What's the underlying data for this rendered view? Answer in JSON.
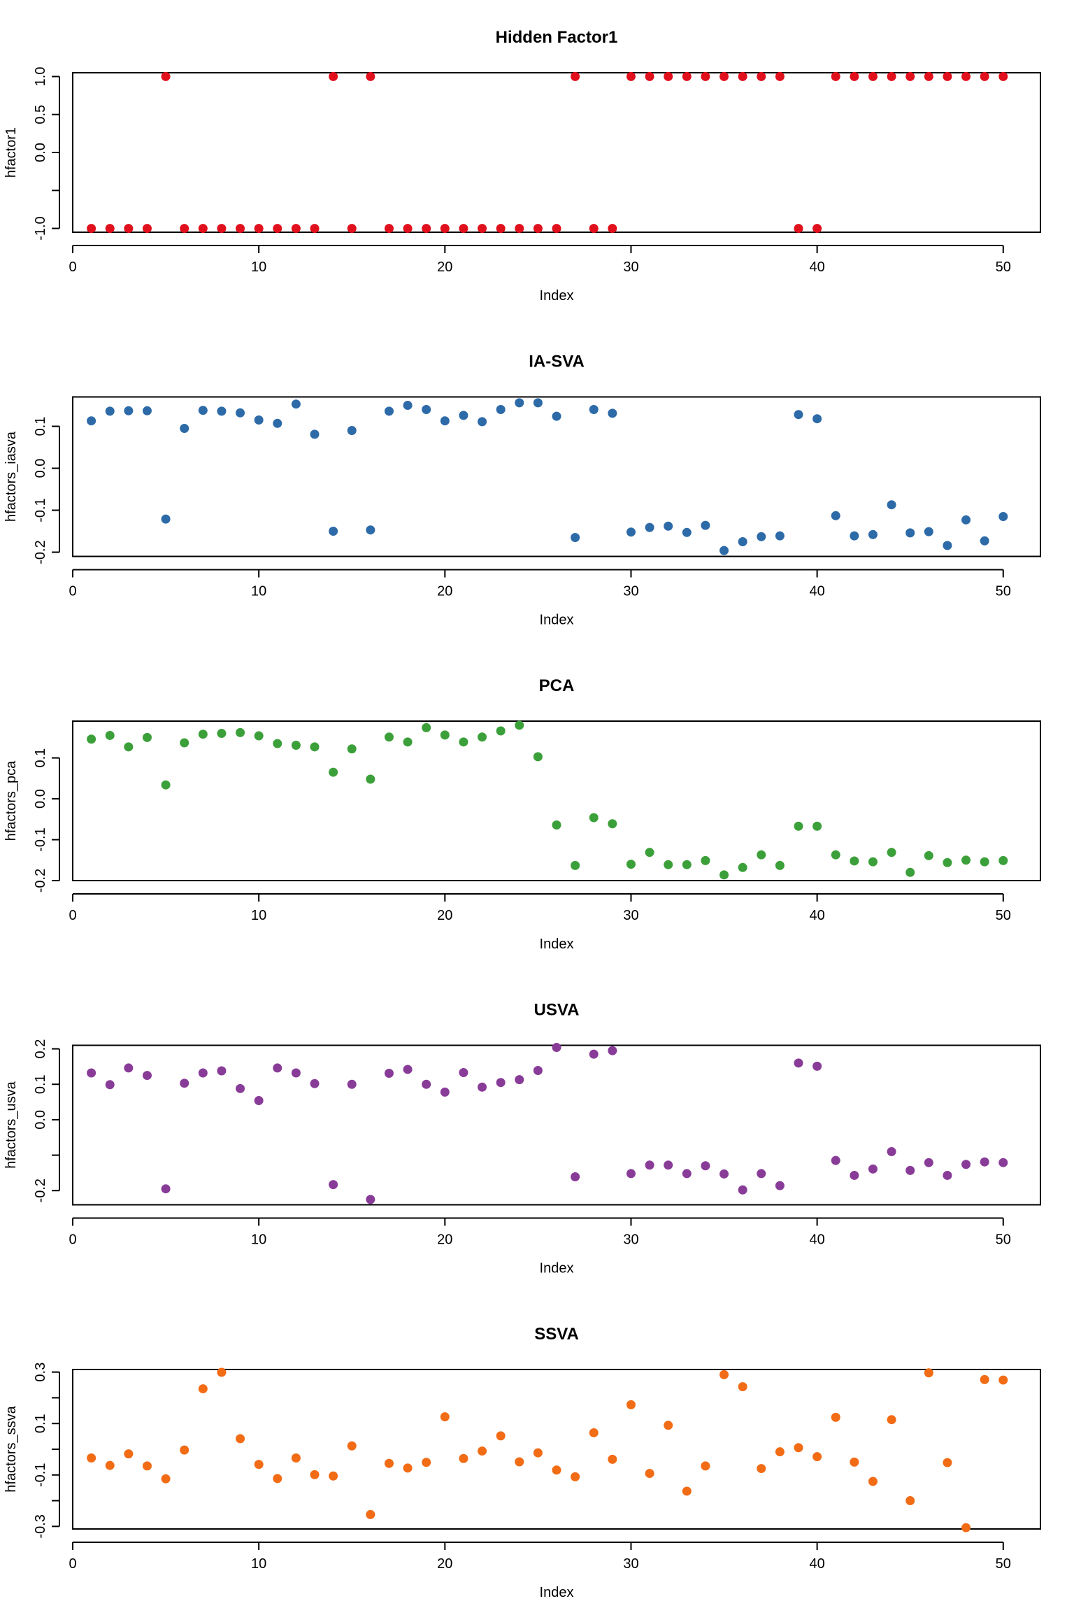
{
  "chart_data": [
    {
      "type": "scatter",
      "title": "Hidden Factor1",
      "xlabel": "Index",
      "ylabel": "hfactor1",
      "color": "#e0101c",
      "xlim": [
        0,
        52
      ],
      "ylim": [
        -1.05,
        1.05
      ],
      "xticks": [
        0,
        10,
        20,
        30,
        40,
        50
      ],
      "yticks": [
        -1.0,
        -0.5,
        0.0,
        0.5,
        1.0
      ],
      "ytick_labels": [
        "-1.0",
        "",
        "0.0",
        "0.5",
        "1.0"
      ],
      "x": [
        1,
        2,
        3,
        4,
        5,
        6,
        7,
        8,
        9,
        10,
        11,
        12,
        13,
        14,
        15,
        16,
        17,
        18,
        19,
        20,
        21,
        22,
        23,
        24,
        25,
        26,
        27,
        28,
        29,
        30,
        31,
        32,
        33,
        34,
        35,
        36,
        37,
        38,
        39,
        40,
        41,
        42,
        43,
        44,
        45,
        46,
        47,
        48,
        49,
        50
      ],
      "y": [
        -1,
        -1,
        -1,
        -1,
        1,
        -1,
        -1,
        -1,
        -1,
        -1,
        -1,
        -1,
        -1,
        1,
        -1,
        1,
        -1,
        -1,
        -1,
        -1,
        -1,
        -1,
        -1,
        -1,
        -1,
        -1,
        1,
        -1,
        -1,
        1,
        1,
        1,
        1,
        1,
        1,
        1,
        1,
        1,
        -1,
        -1,
        1,
        1,
        1,
        1,
        1,
        1,
        1,
        1,
        1,
        1
      ]
    },
    {
      "type": "scatter",
      "title": "IA-SVA",
      "xlabel": "Index",
      "ylabel": "hfactors_iasva",
      "color": "#2d6aa8",
      "xlim": [
        0,
        52
      ],
      "ylim": [
        -0.21,
        0.17
      ],
      "xticks": [
        0,
        10,
        20,
        30,
        40,
        50
      ],
      "yticks": [
        -0.2,
        -0.1,
        0.0,
        0.1
      ],
      "ytick_labels": [
        "-0.2",
        "-0.1",
        "0.0",
        "0.1"
      ],
      "x": [
        1,
        2,
        3,
        4,
        5,
        6,
        7,
        8,
        9,
        10,
        11,
        12,
        13,
        14,
        15,
        16,
        17,
        18,
        19,
        20,
        21,
        22,
        23,
        24,
        25,
        26,
        27,
        28,
        29,
        30,
        31,
        32,
        33,
        34,
        35,
        36,
        37,
        38,
        39,
        40,
        41,
        42,
        43,
        44,
        45,
        46,
        47,
        48,
        49,
        50
      ],
      "y": [
        0.113,
        0.136,
        0.137,
        0.137,
        -0.121,
        0.095,
        0.138,
        0.136,
        0.132,
        0.115,
        0.107,
        0.153,
        0.081,
        -0.15,
        0.09,
        -0.147,
        0.136,
        0.15,
        0.14,
        0.113,
        0.126,
        0.111,
        0.14,
        0.156,
        0.156,
        0.124,
        -0.165,
        0.14,
        0.131,
        -0.152,
        -0.141,
        -0.138,
        -0.153,
        -0.136,
        -0.196,
        -0.175,
        -0.163,
        -0.161,
        0.128,
        0.118,
        -0.113,
        -0.161,
        -0.158,
        -0.087,
        -0.154,
        -0.151,
        -0.184,
        -0.123,
        -0.173,
        -0.115
      ]
    },
    {
      "type": "scatter",
      "title": "PCA",
      "xlabel": "Index",
      "ylabel": "hfactors_pca",
      "color": "#3ca03a",
      "xlim": [
        0,
        52
      ],
      "ylim": [
        -0.2,
        0.19
      ],
      "xticks": [
        0,
        10,
        20,
        30,
        40,
        50
      ],
      "yticks": [
        -0.2,
        -0.1,
        0.0,
        0.1
      ],
      "ytick_labels": [
        "-0.2",
        "-0.1",
        "0.0",
        "0.1"
      ],
      "x": [
        1,
        2,
        3,
        4,
        5,
        6,
        7,
        8,
        9,
        10,
        11,
        12,
        13,
        14,
        15,
        16,
        17,
        18,
        19,
        20,
        21,
        22,
        23,
        24,
        25,
        26,
        27,
        28,
        29,
        30,
        31,
        32,
        33,
        34,
        35,
        36,
        37,
        38,
        39,
        40,
        41,
        42,
        43,
        44,
        45,
        46,
        47,
        48,
        49,
        50
      ],
      "y": [
        0.146,
        0.155,
        0.127,
        0.15,
        0.034,
        0.137,
        0.158,
        0.16,
        0.162,
        0.154,
        0.135,
        0.131,
        0.127,
        0.065,
        0.122,
        0.048,
        0.151,
        0.139,
        0.174,
        0.156,
        0.139,
        0.151,
        0.166,
        0.18,
        0.103,
        -0.064,
        -0.163,
        -0.046,
        -0.061,
        -0.16,
        -0.131,
        -0.161,
        -0.161,
        -0.151,
        -0.186,
        -0.168,
        -0.137,
        -0.163,
        -0.067,
        -0.067,
        -0.137,
        -0.152,
        -0.154,
        -0.131,
        -0.18,
        -0.139,
        -0.156,
        -0.15,
        -0.154,
        -0.151
      ]
    },
    {
      "type": "scatter",
      "title": "USVA",
      "xlabel": "Index",
      "ylabel": "hfactors_usva",
      "color": "#883c98",
      "xlim": [
        0,
        52
      ],
      "ylim": [
        -0.24,
        0.21
      ],
      "xticks": [
        0,
        10,
        20,
        30,
        40,
        50
      ],
      "yticks": [
        -0.2,
        -0.1,
        0.0,
        0.1,
        0.2
      ],
      "ytick_labels": [
        "-0.2",
        "",
        "0.0",
        "0.1",
        "0.2"
      ],
      "x": [
        1,
        2,
        3,
        4,
        5,
        6,
        7,
        8,
        9,
        10,
        11,
        12,
        13,
        14,
        15,
        16,
        17,
        18,
        19,
        20,
        21,
        22,
        23,
        24,
        25,
        26,
        27,
        28,
        29,
        30,
        31,
        32,
        33,
        34,
        35,
        36,
        37,
        38,
        39,
        40,
        41,
        42,
        43,
        44,
        45,
        46,
        47,
        48,
        49,
        50
      ],
      "y": [
        0.132,
        0.099,
        0.146,
        0.125,
        -0.195,
        0.103,
        0.132,
        0.138,
        0.088,
        0.054,
        0.146,
        0.132,
        0.102,
        -0.183,
        0.1,
        -0.225,
        0.131,
        0.142,
        0.1,
        0.078,
        0.133,
        0.092,
        0.105,
        0.113,
        0.139,
        0.204,
        -0.161,
        0.185,
        0.195,
        -0.152,
        -0.128,
        -0.128,
        -0.152,
        -0.13,
        -0.153,
        -0.198,
        -0.152,
        -0.186,
        0.16,
        0.151,
        -0.115,
        -0.157,
        -0.139,
        -0.09,
        -0.143,
        -0.121,
        -0.157,
        -0.126,
        -0.119,
        -0.121
      ]
    },
    {
      "type": "scatter",
      "title": "SSVA",
      "xlabel": "Index",
      "ylabel": "hfactors_ssva",
      "color": "#f26b15",
      "xlim": [
        0,
        52
      ],
      "ylim": [
        -0.31,
        0.31
      ],
      "xticks": [
        0,
        10,
        20,
        30,
        40,
        50
      ],
      "yticks": [
        -0.3,
        -0.2,
        -0.1,
        0.0,
        0.1,
        0.2,
        0.3
      ],
      "ytick_labels": [
        "-0.3",
        "",
        "-0.1",
        "",
        "0.1",
        "",
        "0.3"
      ],
      "x": [
        1,
        2,
        3,
        4,
        5,
        6,
        7,
        8,
        9,
        10,
        11,
        12,
        13,
        14,
        15,
        16,
        17,
        18,
        19,
        20,
        21,
        22,
        23,
        24,
        25,
        26,
        27,
        28,
        29,
        30,
        31,
        32,
        33,
        34,
        35,
        36,
        37,
        38,
        39,
        40,
        41,
        42,
        43,
        44,
        45,
        46,
        47,
        48,
        49,
        50
      ],
      "y": [
        -0.034,
        -0.063,
        -0.018,
        -0.065,
        -0.115,
        -0.003,
        0.235,
        0.299,
        0.041,
        -0.059,
        -0.114,
        -0.034,
        -0.099,
        -0.104,
        0.013,
        -0.254,
        -0.055,
        -0.073,
        -0.051,
        0.126,
        -0.036,
        -0.007,
        0.052,
        -0.049,
        -0.014,
        -0.081,
        -0.107,
        0.064,
        -0.039,
        0.173,
        -0.094,
        0.093,
        -0.163,
        -0.065,
        0.29,
        0.243,
        -0.075,
        -0.01,
        0.006,
        -0.029,
        0.124,
        -0.05,
        -0.125,
        0.115,
        -0.2,
        0.297,
        -0.052,
        -0.305,
        0.271,
        0.269
      ]
    }
  ]
}
